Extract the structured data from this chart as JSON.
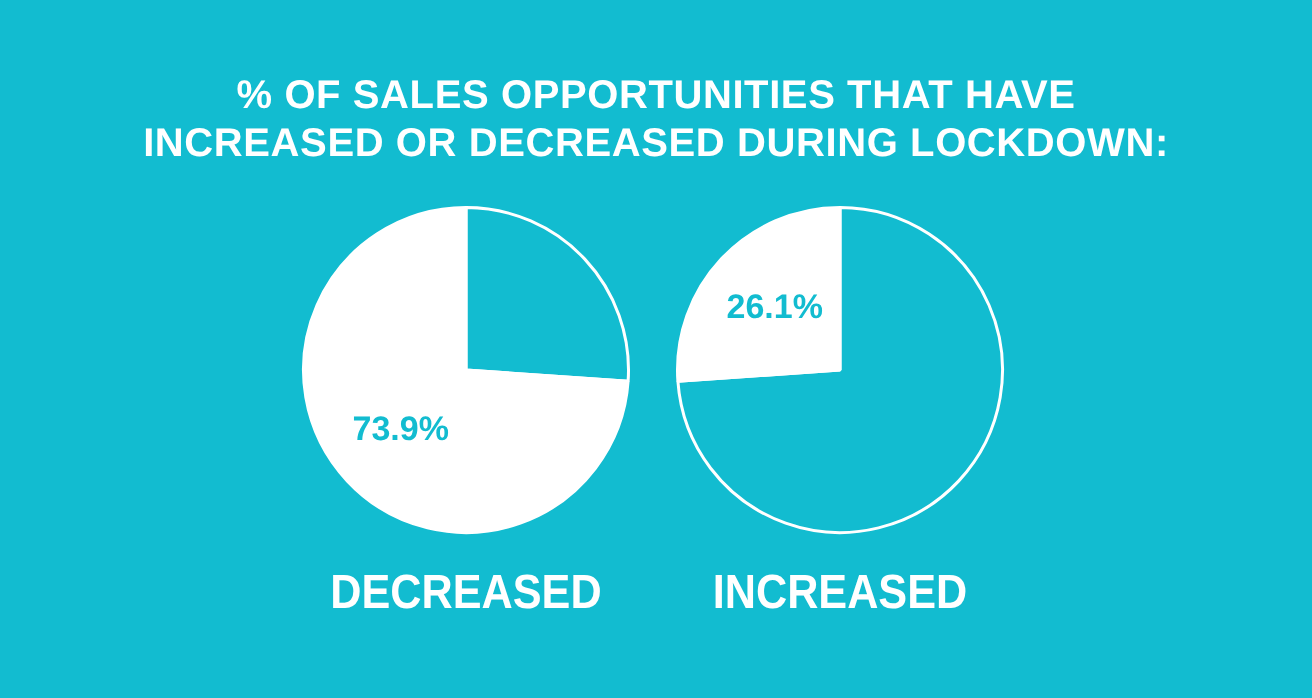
{
  "chart_data": [
    {
      "type": "pie",
      "title": "% OF SALES OPPORTUNITIES THAT HAVE INCREASED OR DECREASED DURING LOCKDOWN:",
      "xlabel": "DECREASED",
      "categories": [
        null,
        null
      ],
      "values": [
        26.1,
        73.9
      ],
      "colors": [
        "#12bcd0",
        "#ffffff"
      ],
      "value_labels": [
        null,
        "73.9%"
      ],
      "legend": false
    },
    {
      "type": "pie",
      "xlabel": "INCREASED",
      "categories": [
        null,
        null
      ],
      "values": [
        73.9,
        26.1
      ],
      "colors": [
        "#12bcd0",
        "#ffffff"
      ],
      "value_labels": [
        null,
        "26.1%"
      ],
      "legend": false
    }
  ]
}
